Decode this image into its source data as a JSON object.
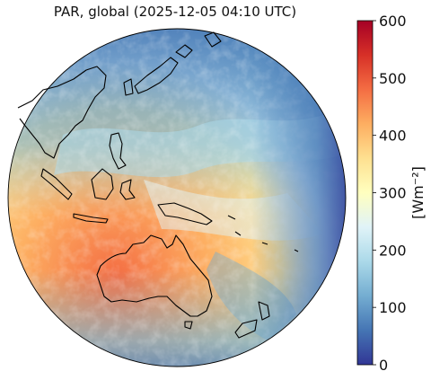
{
  "title": "PAR, global (2025-12-05 04:10 UTC)",
  "colorbar": {
    "label": "[Wm⁻²]",
    "ticks": [
      "0",
      "100",
      "200",
      "300",
      "400",
      "500",
      "600"
    ],
    "min": 0,
    "max": 600,
    "colormap": "RdYlBu_r",
    "stops": [
      "#313695",
      "#4575b4",
      "#74add1",
      "#abd9e9",
      "#e0f3f8",
      "#ffffbf",
      "#fee090",
      "#fdae61",
      "#f46d43",
      "#d73027",
      "#a50026"
    ]
  },
  "map": {
    "projection": "geostationary (orthographic disk)",
    "regions": [
      "Australia",
      "Maritime Continent",
      "East Asia",
      "New Zealand",
      "Western Pacific"
    ]
  }
}
